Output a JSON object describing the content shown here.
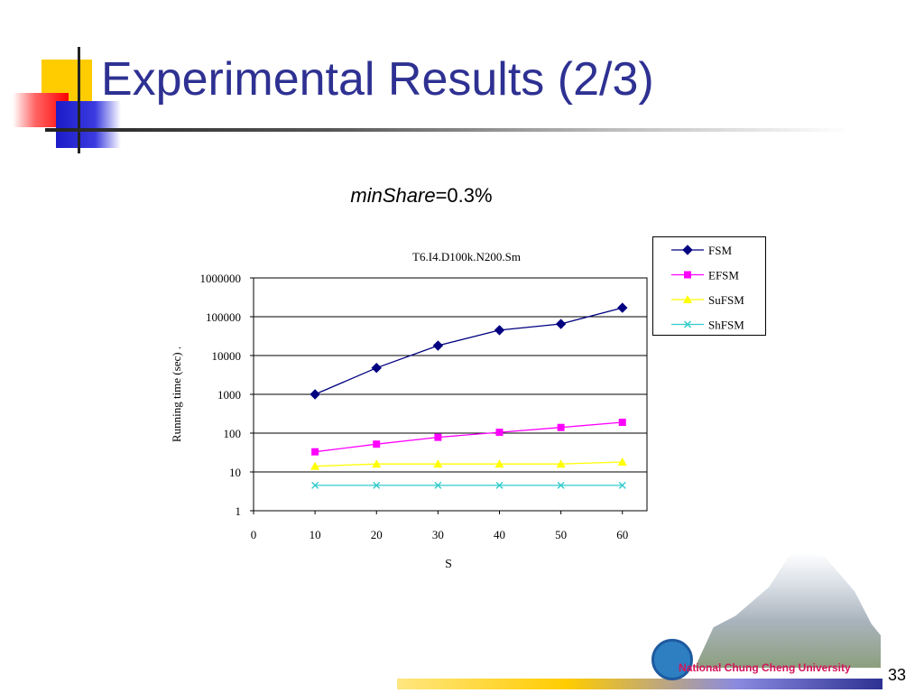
{
  "slide": {
    "title": "Experimental Results (2/3)",
    "subtitle_italic": "minShare",
    "subtitle_rest": "=0.3%",
    "page_number": "33",
    "footer_logo_text": "National Chung Cheng University"
  },
  "colors": {
    "title": "#2e3192",
    "FSM": "#000080",
    "EFSM": "#ff00ff",
    "SuFSM": "#ffff00",
    "ShFSM": "#33cccc"
  },
  "chart_data": {
    "type": "line",
    "title": "T6.I4.D100k.N200.Sm",
    "xlabel": "S",
    "ylabel": "Running time (sec) .",
    "xlim": [
      0,
      64
    ],
    "x_ticks": [
      0,
      10,
      20,
      30,
      40,
      50,
      60
    ],
    "y_scale": "log",
    "ylim": [
      1,
      1000000
    ],
    "y_ticks": [
      "1",
      "10",
      "100",
      "1000",
      "10000",
      "100000",
      "1000000"
    ],
    "grid": "horizontal",
    "legend_position": "top-right",
    "x": [
      10,
      20,
      30,
      40,
      50,
      60
    ],
    "series": [
      {
        "name": "FSM",
        "marker": "diamond",
        "values": [
          1000,
          4800,
          18000,
          45000,
          65000,
          170000
        ]
      },
      {
        "name": "EFSM",
        "marker": "square",
        "values": [
          33,
          52,
          78,
          105,
          140,
          190
        ]
      },
      {
        "name": "SuFSM",
        "marker": "triangle",
        "values": [
          14,
          16,
          16,
          16,
          16,
          18
        ]
      },
      {
        "name": "ShFSM",
        "marker": "x",
        "values": [
          4.5,
          4.5,
          4.5,
          4.5,
          4.5,
          4.5
        ]
      }
    ]
  }
}
